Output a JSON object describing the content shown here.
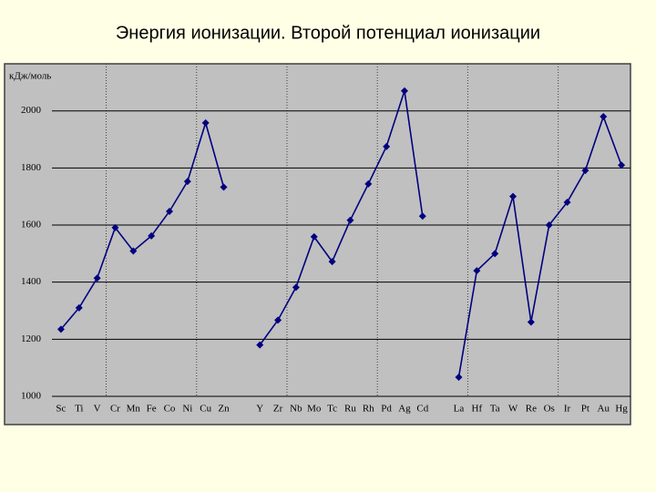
{
  "chart_data": {
    "type": "line",
    "title": "Энергия ионизации. Второй потенциал ионизации",
    "ylabel": "кДж/моль",
    "categories": [
      "Sc",
      "Ti",
      "V",
      "Cr",
      "Mn",
      "Fe",
      "Co",
      "Ni",
      "Cu",
      "Zn",
      null,
      "Y",
      "Zr",
      "Nb",
      "Mo",
      "Tc",
      "Ru",
      "Rh",
      "Pd",
      "Ag",
      "Cd",
      null,
      "La",
      "Hf",
      "Ta",
      "W",
      "Re",
      "Os",
      "Ir",
      "Pt",
      "Au",
      "Hg"
    ],
    "series": [
      {
        "name": "II",
        "color": "#000080",
        "values": [
          1235,
          1310,
          1414,
          1591,
          1509,
          1562,
          1648,
          1753,
          1958,
          1733,
          null,
          1180,
          1267,
          1382,
          1559,
          1472,
          1617,
          1744,
          1875,
          2070,
          1631,
          null,
          1067,
          1440,
          1500,
          1700,
          1260,
          1600,
          1680,
          1791,
          1980,
          1810
        ]
      }
    ],
    "ylim": [
      1000,
      2165
    ],
    "yticks": [
      1000,
      1200,
      1400,
      1600,
      1800,
      2000
    ],
    "grid": true
  }
}
